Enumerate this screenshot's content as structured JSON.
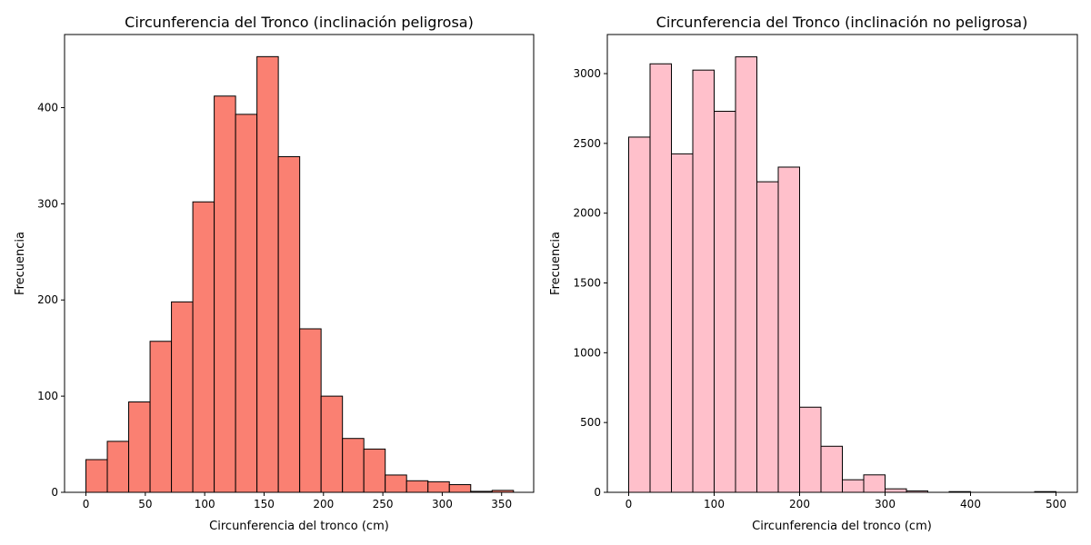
{
  "colors": {
    "left_fill": "#fa8072",
    "right_fill": "#ffc0cb",
    "edge": "#000000"
  },
  "chart_data": [
    {
      "type": "bar",
      "subtype": "histogram",
      "title": "Circunferencia del Tronco (inclinación peligrosa)",
      "xlabel": "Circunferencia del tronco (cm)",
      "ylabel": "Frecuencia",
      "xlim": [
        -18,
        377
      ],
      "ylim": [
        0,
        476
      ],
      "xticks": [
        0,
        50,
        100,
        150,
        200,
        250,
        300,
        350
      ],
      "yticks": [
        0,
        100,
        200,
        300,
        400
      ],
      "bin_edges": [
        0,
        18,
        36,
        54,
        72,
        90,
        108,
        126,
        144,
        162,
        180,
        198,
        216,
        234,
        252,
        270,
        288,
        306,
        324,
        342,
        360
      ],
      "values": [
        34,
        53,
        94,
        157,
        198,
        302,
        412,
        393,
        453,
        349,
        170,
        100,
        56,
        45,
        18,
        12,
        11,
        8,
        1,
        2
      ],
      "grid": false
    },
    {
      "type": "bar",
      "subtype": "histogram",
      "title": "Circunferencia del Tronco (inclinación no peligrosa)",
      "xlabel": "Circunferencia del tronco (cm)",
      "ylabel": "Frecuencia",
      "xlim": [
        -25,
        525
      ],
      "ylim": [
        0,
        3280
      ],
      "xticks": [
        0,
        100,
        200,
        300,
        400,
        500
      ],
      "yticks": [
        0,
        500,
        1000,
        1500,
        2000,
        2500,
        3000
      ],
      "bin_edges": [
        0,
        25,
        50,
        75,
        100,
        125,
        150,
        175,
        200,
        225,
        250,
        275,
        300,
        325,
        350,
        375,
        400,
        425,
        450,
        475,
        500
      ],
      "values": [
        2545,
        3070,
        2425,
        3025,
        2730,
        3120,
        2225,
        2330,
        610,
        330,
        90,
        125,
        25,
        10,
        0,
        5,
        0,
        0,
        0,
        5
      ],
      "grid": false
    }
  ]
}
